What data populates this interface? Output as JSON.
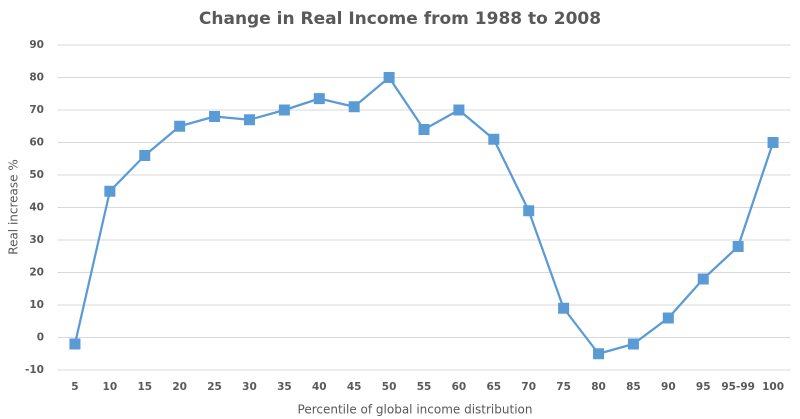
{
  "chart_data": {
    "type": "line",
    "title": "Change in Real Income from 1988 to 2008",
    "x_label": "Percentile of global income distribution",
    "y_label": "Real increase %",
    "categories": [
      "5",
      "10",
      "15",
      "20",
      "25",
      "30",
      "35",
      "40",
      "45",
      "50",
      "55",
      "60",
      "65",
      "70",
      "75",
      "80",
      "85",
      "90",
      "95",
      "95-99",
      "100"
    ],
    "values": [
      -2,
      45,
      56,
      65,
      68,
      67,
      70,
      73.5,
      71,
      80,
      64,
      70,
      61,
      39,
      9,
      -5,
      -2,
      6,
      18,
      28,
      60
    ],
    "color": "#5b9bd5",
    "ylim": [
      -10,
      90
    ],
    "yticks": [
      -10,
      0,
      10,
      20,
      30,
      40,
      50,
      60,
      70,
      80,
      90
    ],
    "grid": true
  }
}
